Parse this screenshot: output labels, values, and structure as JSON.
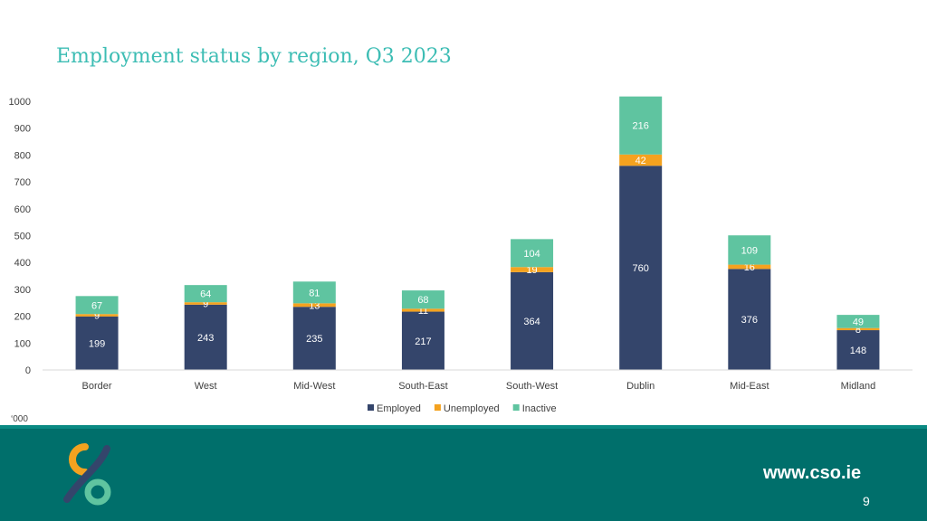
{
  "title": "Employment status by region, Q3 2023",
  "unit_note": "‘000",
  "footer": {
    "website": "www.cso.ie",
    "page_number": "9"
  },
  "colors": {
    "employed": "#34456b",
    "unemployed": "#f4a21f",
    "inactive": "#5fc4a0",
    "title": "#3dbdb4",
    "footer": "#006f6b"
  },
  "chart_data": {
    "type": "bar",
    "stacked": true,
    "categories": [
      "Border",
      "West",
      "Mid-West",
      "South-East",
      "South-West",
      "Dublin",
      "Mid-East",
      "Midland"
    ],
    "series": [
      {
        "name": "Employed",
        "values": [
          199,
          243,
          235,
          217,
          364,
          760,
          376,
          148
        ]
      },
      {
        "name": "Unemployed",
        "values": [
          9,
          9,
          13,
          11,
          19,
          42,
          16,
          8
        ]
      },
      {
        "name": "Inactive",
        "values": [
          67,
          64,
          81,
          68,
          104,
          216,
          109,
          49
        ]
      }
    ],
    "ylim": [
      0,
      1000
    ],
    "yticks": [
      0,
      100,
      200,
      300,
      400,
      500,
      600,
      700,
      800,
      900,
      1000
    ],
    "grid": false,
    "legend": "bottom"
  }
}
